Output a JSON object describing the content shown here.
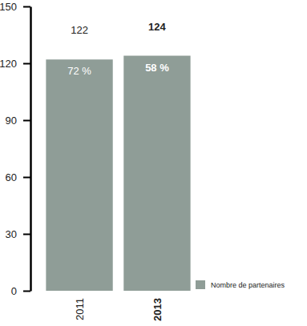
{
  "chart_data": {
    "type": "bar",
    "categories": [
      "2011",
      "2013"
    ],
    "series": [
      {
        "name": "Nombre de partenaires",
        "color": "#8f9d97",
        "values": [
          122,
          124
        ]
      }
    ],
    "annotations": [
      "72 %",
      "58 %"
    ],
    "ylim": [
      0,
      150
    ],
    "yticks": [
      0,
      30,
      60,
      90,
      120,
      150
    ],
    "data_labels": true,
    "legend": "bottom-right",
    "grid": false
  }
}
